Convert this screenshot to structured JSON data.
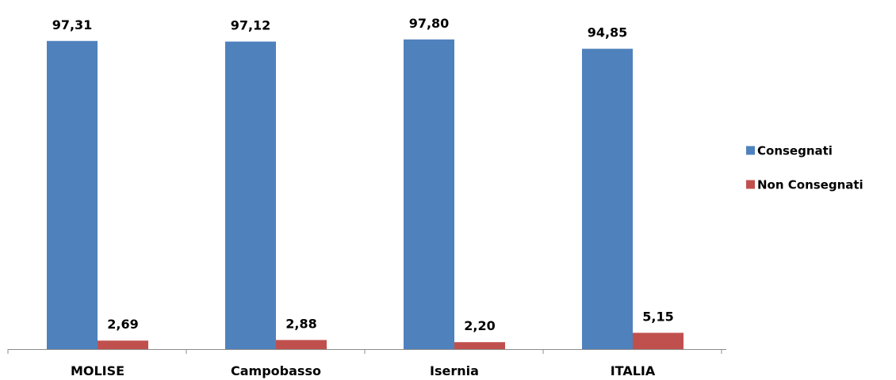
{
  "chart_data": {
    "type": "bar",
    "title": "",
    "xlabel": "",
    "ylabel": "",
    "ylim": [
      0,
      100
    ],
    "categories": [
      "MOLISE",
      "Campobasso",
      "Isernia",
      "ITALIA"
    ],
    "series": [
      {
        "name": "Consegnati",
        "color": "#4f81bd",
        "values": [
          97.31,
          97.12,
          97.8,
          94.85
        ],
        "labels": [
          "97,31",
          "97,12",
          "97,80",
          "94,85"
        ]
      },
      {
        "name": "Non Consegnati",
        "color": "#c0504d",
        "values": [
          2.69,
          2.88,
          2.2,
          5.15
        ],
        "labels": [
          "2,69",
          "2,88",
          "2,20",
          "5,15"
        ]
      }
    ],
    "legend_position": "right",
    "grid": false
  }
}
